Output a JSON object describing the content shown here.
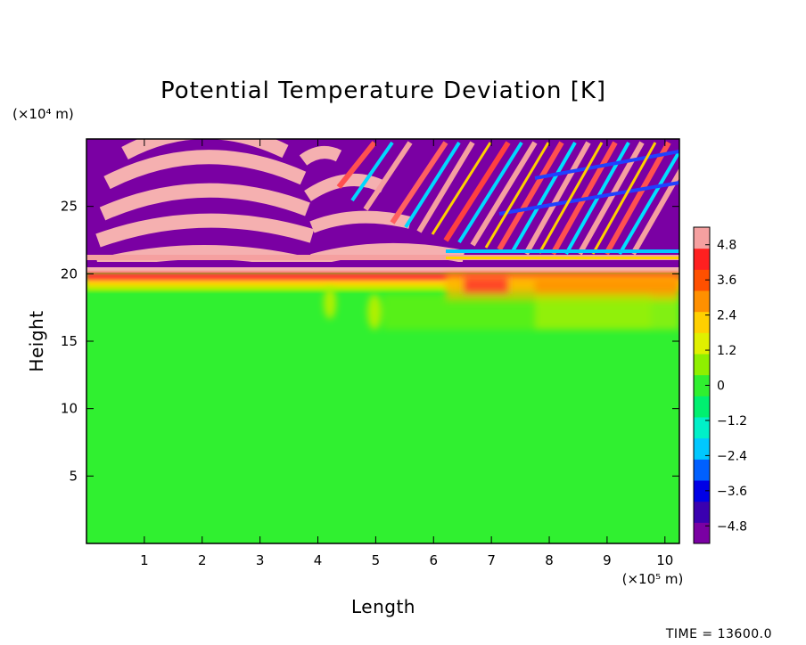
{
  "chart_data": {
    "type": "heatmap",
    "title": "Potential Temperature Deviation [K]",
    "xlabel": "Length",
    "ylabel": "Height",
    "x_unit": "(×10⁵ m)",
    "y_unit": "(×10⁴ m)",
    "xlim": [
      0,
      10.25
    ],
    "ylim": [
      0,
      30
    ],
    "x_ticks": [
      1,
      2,
      3,
      4,
      5,
      6,
      7,
      8,
      9,
      10
    ],
    "y_ticks": [
      5,
      10,
      15,
      20,
      25
    ],
    "colorbar": {
      "range": [
        -5.4,
        5.4
      ],
      "ticks": [
        4.8,
        3.6,
        2.4,
        1.2,
        0,
        -1.2,
        -2.4,
        -3.6,
        -4.8
      ],
      "tick_labels": [
        "4.8",
        "3.6",
        "2.4",
        "1.2",
        "0",
        "−1.2",
        "−2.4",
        "−3.6",
        "−4.8"
      ],
      "colors": [
        "#7a00a3",
        "#3a00b0",
        "#0000e6",
        "#0060ff",
        "#00c8ff",
        "#00f0c8",
        "#00f070",
        "#30f030",
        "#8ff000",
        "#e0f000",
        "#ffd000",
        "#ff9000",
        "#ff5000",
        "#ff2020",
        "#f5a0a0"
      ]
    },
    "field_description": "Near-zero deviation (green) below ~19×10⁴ m; warm band near 19–20×10⁴ m; strongly oscillating ±4.8 K wave pattern above 20×10⁴ m",
    "annotation": "TIME = 13600.0"
  }
}
